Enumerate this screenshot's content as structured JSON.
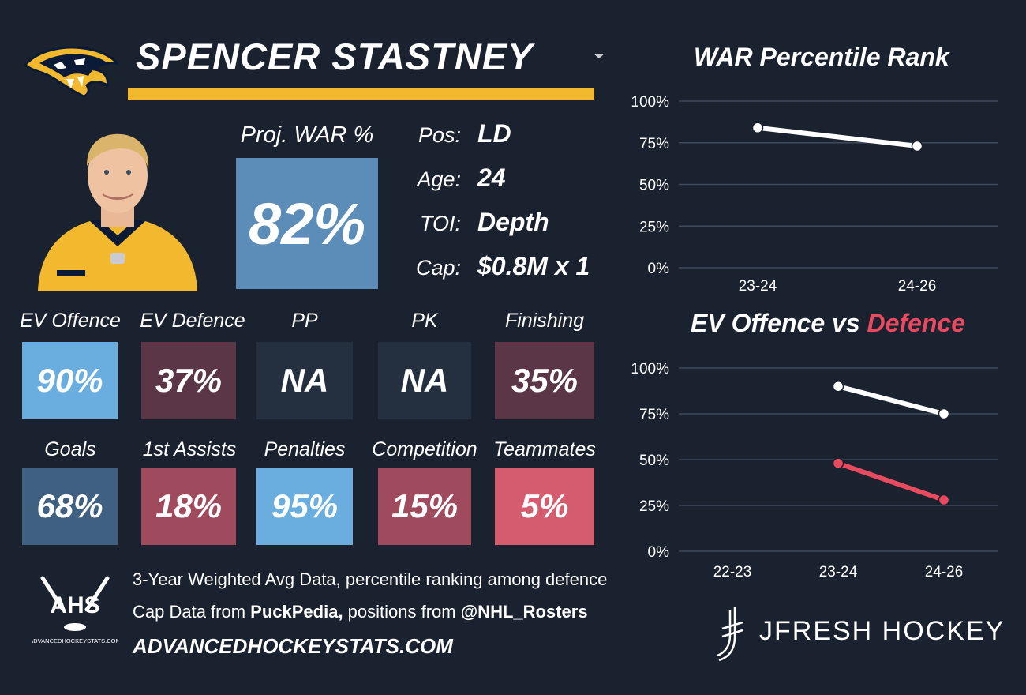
{
  "header": {
    "player_name": "SPENCER STASTNEY",
    "team_logo": "predators-logo",
    "dropdown_icon": "chevron-down-icon"
  },
  "projection": {
    "label": "Proj. WAR %",
    "value": "82%",
    "color": "#5b8db8"
  },
  "info": [
    {
      "label": "Pos:",
      "value": "LD"
    },
    {
      "label": "Age:",
      "value": "24"
    },
    {
      "label": "TOI:",
      "value": "Depth"
    },
    {
      "label": "Cap:",
      "value": "$0.8M x 1"
    }
  ],
  "tiles_row1": [
    {
      "label": "EV Offence",
      "value": "90%",
      "color": "#6aaee0"
    },
    {
      "label": "EV Defence",
      "value": "37%",
      "color": "#5a3646"
    },
    {
      "label": "PP",
      "value": "NA",
      "color": "#243040"
    },
    {
      "label": "PK",
      "value": "NA",
      "color": "#243040"
    },
    {
      "label": "Finishing",
      "value": "35%",
      "color": "#5a3646"
    }
  ],
  "tiles_row2": [
    {
      "label": "Goals",
      "value": "68%",
      "color": "#3f6080"
    },
    {
      "label": "1st Assists",
      "value": "18%",
      "color": "#a04a5e"
    },
    {
      "label": "Penalties",
      "value": "95%",
      "color": "#6aaee0"
    },
    {
      "label": "Competition",
      "value": "15%",
      "color": "#a04a5e"
    },
    {
      "label": "Teammates",
      "value": "5%",
      "color": "#d55b6e"
    }
  ],
  "footer": {
    "line1": "3-Year Weighted Avg Data, percentile ranking among defence",
    "line2_prefix": "Cap Data from ",
    "line2_source": "PuckPedia,",
    "line2_middle": " positions from ",
    "line2_handle": "@NHL_Rosters",
    "site": "ADVANCEDHOCKEYSTATS.COM",
    "ahs_logo_text": "AHS",
    "ahs_logo_subtext": "ADVANCEDHOCKEYSTATS.COM",
    "brand": "JFRESH HOCKEY"
  },
  "chart_data": [
    {
      "type": "line",
      "title": "WAR Percentile Rank",
      "categories": [
        "23-24",
        "24-26"
      ],
      "yticks": [
        "100%",
        "75%",
        "50%",
        "25%",
        "0%"
      ],
      "ylim": [
        0,
        100
      ],
      "grid": true,
      "series": [
        {
          "values": [
            84,
            73
          ],
          "color": "#ffffff"
        }
      ]
    },
    {
      "type": "line",
      "title": "EV Offence vs ",
      "title_highlight": "Defence",
      "title_highlight_color": "#e84a5f",
      "categories": [
        "22-23",
        "23-24",
        "24-26"
      ],
      "yticks": [
        "100%",
        "75%",
        "50%",
        "25%",
        "0%"
      ],
      "ylim": [
        0,
        100
      ],
      "grid": true,
      "series": [
        {
          "values": [
            null,
            90,
            75
          ],
          "color": "#ffffff"
        },
        {
          "values": [
            null,
            48,
            28
          ],
          "color": "#e84a5f"
        }
      ]
    }
  ]
}
